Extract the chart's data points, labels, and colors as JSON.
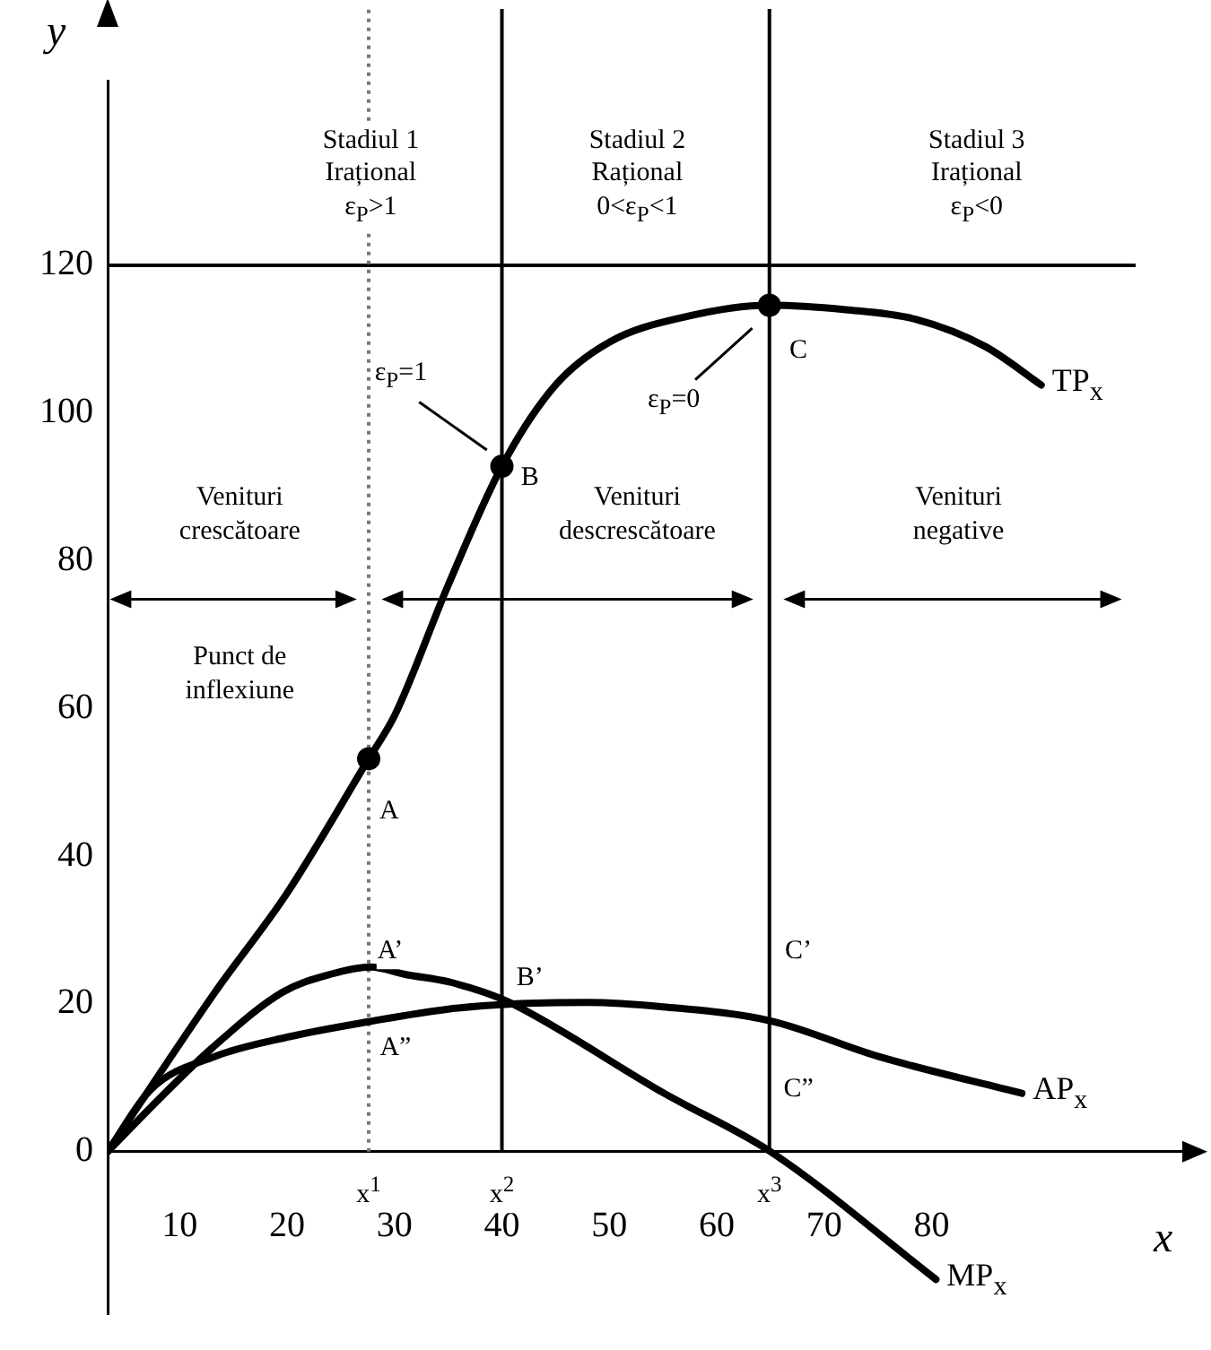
{
  "chart_data": {
    "type": "line",
    "xlabel": "x",
    "ylabel": "y",
    "xlim": [
      3.3,
      104
    ],
    "ylim": [
      -22,
      145
    ],
    "xticks": [
      10,
      20,
      30,
      40,
      50,
      60,
      70,
      80
    ],
    "yticks": [
      0,
      20,
      40,
      60,
      80,
      100,
      120
    ],
    "grid": false,
    "legend": false,
    "series": [
      {
        "name": "TP$_{x}$",
        "color": "#000000",
        "marker": "none",
        "line_style": "solid",
        "x": [
          3.3,
          13.3,
          20,
          27.6,
          30,
          35,
          40,
          45,
          50,
          57,
          64.9,
          72,
          78.5,
          85,
          90.2
        ],
        "values": [
          0,
          21.6,
          35,
          53.2,
          59,
          76.7,
          92.8,
          103.8,
          109.6,
          113,
          114.6,
          114,
          112.7,
          109,
          103.8
        ]
      },
      {
        "name": "AP$_{x}$",
        "color": "#000000",
        "marker": "none",
        "line_style": "solid",
        "x": [
          3.3,
          7.3,
          13.3,
          20,
          27.6,
          35,
          41,
          48,
          55,
          65,
          75,
          88.4
        ],
        "values": [
          0,
          8.4,
          12.9,
          15.5,
          17.6,
          19.3,
          20,
          20.2,
          19.6,
          17.7,
          12.9,
          7.9
        ]
      },
      {
        "name": "MP$_{x}$",
        "color": "#000000",
        "marker": "none",
        "line_style": "solid",
        "x": [
          3.3,
          8,
          13,
          19.6,
          24,
          27.8,
          31,
          35,
          38.3,
          41,
          55.1,
          65,
          80.4
        ],
        "values": [
          0,
          7,
          14,
          21.6,
          24,
          25,
          24,
          23,
          21.6,
          20,
          7.9,
          0,
          -17.3
        ]
      },
      {
        "type": "scatter",
        "color": "#000000",
        "marker": "circle",
        "x": [
          27.6,
          40,
          64.9
        ],
        "values": [
          53.2,
          92.8,
          114.6
        ]
      }
    ],
    "ref_lines": [
      {
        "axis": "y",
        "value": 120,
        "color": "#000000",
        "line_style": "solid"
      },
      {
        "axis": "x",
        "value": 27.6,
        "color": "#777777",
        "line_style": "dotted"
      },
      {
        "axis": "x",
        "value": 40,
        "color": "#000000",
        "line_style": "solid"
      },
      {
        "axis": "x",
        "value": 64.9,
        "color": "#000000",
        "line_style": "solid"
      }
    ],
    "annotations": [
      "Stadiul 1\nIrațional\nε$_{P}$>1",
      "Stadiul 2\nRațional\n0<ε$_{P}$<1",
      "Stadiul 3\nIrațional\nε$_{P}$<0",
      "Venituri\ncrescătoare",
      "Venituri\ndescrescătoare",
      "Venituri\nnegative",
      "Punct de\ninflexiune",
      {
        "text": "ε$_{P}$=1",
        "x": 30.6,
        "y": 105
      },
      {
        "text": "ε$_{P}$=0",
        "x": 56,
        "y": 101.4
      },
      {
        "text": "A",
        "x": 29.5,
        "y": 46
      },
      {
        "text": "B",
        "x": 42.6,
        "y": 91
      },
      {
        "text": "C",
        "x": 67.6,
        "y": 108.4
      },
      {
        "text": "A’",
        "x": 29.6,
        "y": 27
      },
      {
        "text": "A”",
        "x": 30.1,
        "y": 13.9
      },
      {
        "text": "B’",
        "x": 42.6,
        "y": 23.5
      },
      {
        "text": "C’",
        "x": 67.6,
        "y": 27.1
      },
      {
        "text": "C”",
        "x": 67.6,
        "y": 8.4
      },
      {
        "text": "x$^{1}$",
        "x": 27.6,
        "y": -5.5
      },
      {
        "text": "x$^{2}$",
        "x": 40,
        "y": -5.5
      },
      {
        "text": "x$^{3}$",
        "x": 64.9,
        "y": -5.5
      }
    ]
  }
}
